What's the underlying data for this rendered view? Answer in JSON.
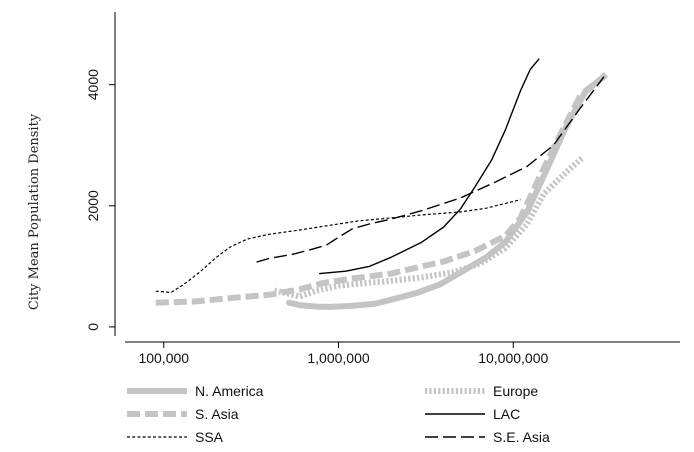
{
  "chart_data": {
    "type": "line",
    "title": "",
    "xlabel": "",
    "ylabel": "City Mean Population Density",
    "x_scale": "log",
    "xlim": [
      60000,
      90000000
    ],
    "ylim": [
      -150,
      5200
    ],
    "x_ticks": [
      100000,
      1000000,
      10000000
    ],
    "x_tick_labels": [
      "100,000",
      "1,000,000",
      "10,000,000"
    ],
    "y_ticks": [
      0,
      2000,
      4000
    ],
    "y_tick_labels": [
      "0",
      "2000",
      "4000"
    ],
    "grid": false,
    "legend_position": "bottom",
    "series": [
      {
        "name": "N. America",
        "color": "#c4c4c4",
        "style": "thick-solid",
        "points": [
          [
            520000,
            400
          ],
          [
            600000,
            360
          ],
          [
            750000,
            335
          ],
          [
            900000,
            330
          ],
          [
            1200000,
            350
          ],
          [
            1600000,
            380
          ],
          [
            2000000,
            450
          ],
          [
            2800000,
            560
          ],
          [
            3800000,
            700
          ],
          [
            5000000,
            900
          ],
          [
            7000000,
            1150
          ],
          [
            9000000,
            1400
          ],
          [
            12000000,
            1900
          ],
          [
            15000000,
            2500
          ],
          [
            20000000,
            3300
          ],
          [
            26000000,
            3900
          ],
          [
            33000000,
            4130
          ]
        ]
      },
      {
        "name": "Europe",
        "color": "#c4c4c4",
        "style": "dotted",
        "points": [
          [
            430000,
            600
          ],
          [
            500000,
            560
          ],
          [
            600000,
            500
          ],
          [
            750000,
            600
          ],
          [
            1000000,
            680
          ],
          [
            1500000,
            730
          ],
          [
            2000000,
            760
          ],
          [
            3000000,
            820
          ],
          [
            4500000,
            900
          ],
          [
            6500000,
            1050
          ],
          [
            9000000,
            1300
          ],
          [
            12000000,
            1700
          ],
          [
            15000000,
            2200
          ],
          [
            20000000,
            2550
          ],
          [
            25000000,
            2800
          ]
        ]
      },
      {
        "name": "S. Asia",
        "color": "#c4c4c4",
        "style": "dashed",
        "points": [
          [
            90000,
            400
          ],
          [
            150000,
            420
          ],
          [
            250000,
            480
          ],
          [
            400000,
            530
          ],
          [
            600000,
            620
          ],
          [
            800000,
            720
          ],
          [
            1200000,
            800
          ],
          [
            2000000,
            880
          ],
          [
            3000000,
            1000
          ],
          [
            4000000,
            1080
          ],
          [
            6000000,
            1250
          ],
          [
            9000000,
            1500
          ],
          [
            11000000,
            1800
          ],
          [
            14000000,
            2450
          ],
          [
            18000000,
            3100
          ],
          [
            24000000,
            3800
          ],
          [
            34000000,
            4170
          ]
        ]
      },
      {
        "name": "LAC",
        "color": "#000000",
        "style": "solid",
        "points": [
          [
            780000,
            880
          ],
          [
            1100000,
            920
          ],
          [
            1500000,
            1000
          ],
          [
            2000000,
            1150
          ],
          [
            3000000,
            1400
          ],
          [
            4000000,
            1650
          ],
          [
            5000000,
            1950
          ],
          [
            6000000,
            2300
          ],
          [
            7500000,
            2750
          ],
          [
            9000000,
            3250
          ],
          [
            11000000,
            3900
          ],
          [
            12500000,
            4250
          ],
          [
            14000000,
            4420
          ]
        ]
      },
      {
        "name": "SSA",
        "color": "#000000",
        "style": "short-dash",
        "points": [
          [
            90000,
            590
          ],
          [
            110000,
            570
          ],
          [
            130000,
            700
          ],
          [
            160000,
            900
          ],
          [
            200000,
            1150
          ],
          [
            240000,
            1320
          ],
          [
            300000,
            1450
          ],
          [
            400000,
            1530
          ],
          [
            600000,
            1600
          ],
          [
            900000,
            1680
          ],
          [
            1300000,
            1750
          ],
          [
            2000000,
            1800
          ],
          [
            3000000,
            1850
          ],
          [
            5000000,
            1900
          ],
          [
            7000000,
            1960
          ],
          [
            11000000,
            2100
          ]
        ]
      },
      {
        "name": "S.E. Asia",
        "color": "#000000",
        "style": "long-dash",
        "points": [
          [
            340000,
            1070
          ],
          [
            400000,
            1130
          ],
          [
            550000,
            1200
          ],
          [
            700000,
            1280
          ],
          [
            850000,
            1350
          ],
          [
            1000000,
            1480
          ],
          [
            1200000,
            1620
          ],
          [
            1500000,
            1700
          ],
          [
            2000000,
            1780
          ],
          [
            3000000,
            1920
          ],
          [
            5000000,
            2130
          ],
          [
            8000000,
            2400
          ],
          [
            12000000,
            2650
          ],
          [
            17000000,
            3000
          ],
          [
            24000000,
            3600
          ],
          [
            33000000,
            4130
          ]
        ]
      }
    ]
  }
}
